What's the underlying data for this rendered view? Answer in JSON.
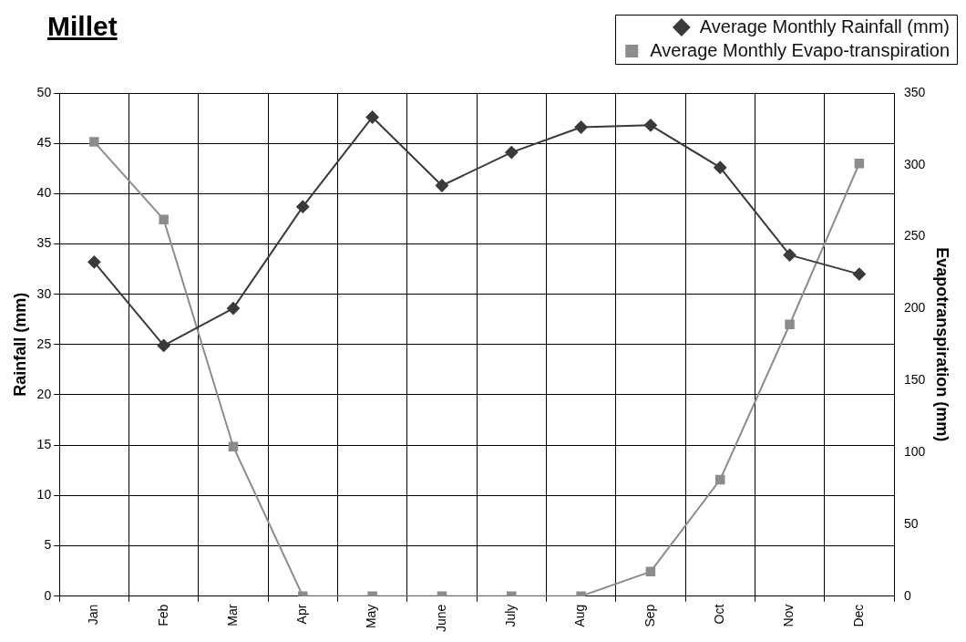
{
  "chart_data": {
    "type": "line",
    "title": "Millet",
    "ylabel": "Rainfall (mm)",
    "y2label": "Evapotranspiration (mm)",
    "categories": [
      "Jan",
      "Feb",
      "Mar",
      "Apr",
      "May",
      "June",
      "July",
      "Aug",
      "Sep",
      "Oct",
      "Nov",
      "Dec"
    ],
    "series": [
      {
        "name": "Average Monthly Rainfall (mm)",
        "color": "#3a3a3a",
        "marker": "diamond",
        "values": [
          33.2,
          24.9,
          28.6,
          38.7,
          47.6,
          40.8,
          44.1,
          46.6,
          46.8,
          42.6,
          33.9,
          32.0
        ]
      },
      {
        "name": "Average Monthly Evapo-transpiration",
        "color": "#8c8c8c",
        "marker": "square",
        "axis": "y2",
        "values": [
          316,
          262,
          104,
          0,
          0,
          0,
          0,
          0,
          17,
          81,
          189,
          301
        ]
      }
    ],
    "ylim": [
      0,
      50
    ],
    "yticks": [
      0,
      5,
      10,
      15,
      20,
      25,
      30,
      35,
      40,
      45,
      50
    ],
    "y2lim": [
      0,
      350
    ],
    "y2ticks": [
      0,
      50,
      100,
      150,
      200,
      250,
      300,
      350
    ],
    "grid": true,
    "legend": "top right",
    "line_style": "solid"
  }
}
